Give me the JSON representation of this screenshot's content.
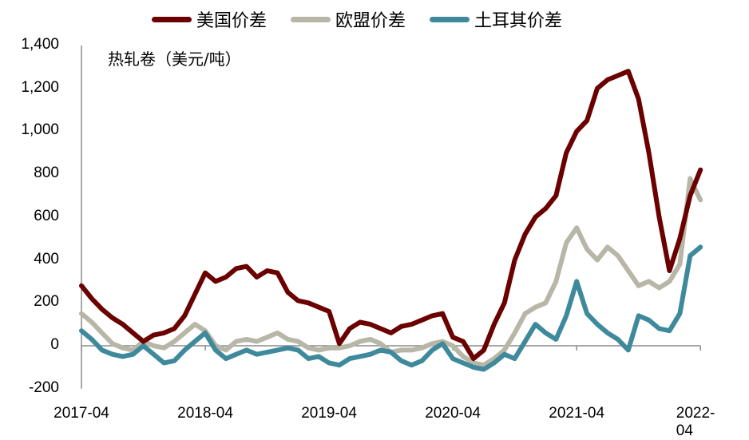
{
  "legend": [
    {
      "label": "美国价差",
      "color": "#6b0000"
    },
    {
      "label": "欧盟价差",
      "color": "#b8b6a6"
    },
    {
      "label": "土耳其价差",
      "color": "#3e8a9c"
    }
  ],
  "unit_label": "热轧卷（美元/吨）",
  "chart_data": {
    "type": "line",
    "title": "",
    "ylabel": "热轧卷（美元/吨）",
    "xlabel": "",
    "ylim": [
      -200,
      1400
    ],
    "yticks": [
      "1,400",
      "1,200",
      "1,000",
      "800",
      "600",
      "400",
      "200",
      "0",
      "-200"
    ],
    "ytick_values": [
      1400,
      1200,
      1000,
      800,
      600,
      400,
      200,
      0,
      -200
    ],
    "xticks": [
      "2017-04",
      "2018-04",
      "2019-04",
      "2020-04",
      "2021-04",
      "2022-04"
    ],
    "x_months": [
      0,
      1,
      2,
      3,
      4,
      5,
      6,
      7,
      8,
      9,
      10,
      11,
      12,
      13,
      14,
      15,
      16,
      17,
      18,
      19,
      20,
      21,
      22,
      23,
      24,
      25,
      26,
      27,
      28,
      29,
      30,
      31,
      32,
      33,
      34,
      35,
      36,
      37,
      38,
      39,
      40,
      41,
      42,
      43,
      44,
      45,
      46,
      47,
      48,
      49,
      50,
      51,
      52,
      53,
      54,
      55,
      56,
      57,
      58,
      59,
      60
    ],
    "series": [
      {
        "name": "美国价差",
        "color": "#6b0000",
        "values": [
          280,
          220,
          170,
          130,
          100,
          60,
          20,
          50,
          60,
          80,
          140,
          240,
          340,
          300,
          320,
          360,
          370,
          320,
          350,
          340,
          250,
          210,
          200,
          180,
          160,
          10,
          80,
          110,
          100,
          80,
          60,
          90,
          100,
          120,
          140,
          150,
          40,
          20,
          -60,
          -20,
          100,
          200,
          400,
          520,
          600,
          640,
          700,
          900,
          1000,
          1050,
          1200,
          1240,
          1260,
          1280,
          1150,
          900,
          600,
          350,
          500,
          700,
          820
        ]
      },
      {
        "name": "欧盟价差",
        "color": "#b8b6a6",
        "values": [
          150,
          110,
          60,
          10,
          -10,
          -20,
          20,
          0,
          -10,
          20,
          60,
          100,
          70,
          0,
          -20,
          20,
          30,
          20,
          40,
          60,
          30,
          20,
          -10,
          -20,
          -10,
          -10,
          0,
          20,
          30,
          10,
          -30,
          -20,
          -20,
          -10,
          10,
          20,
          0,
          -50,
          -80,
          -90,
          -60,
          -20,
          60,
          150,
          180,
          200,
          300,
          480,
          550,
          450,
          400,
          460,
          420,
          350,
          280,
          300,
          270,
          300,
          380,
          780,
          680
        ]
      },
      {
        "name": "土耳其价差",
        "color": "#3e8a9c",
        "values": [
          70,
          30,
          -20,
          -40,
          -50,
          -40,
          0,
          -40,
          -80,
          -70,
          -20,
          20,
          60,
          -20,
          -60,
          -40,
          -20,
          -40,
          -30,
          -20,
          -10,
          -20,
          -60,
          -50,
          -80,
          -90,
          -60,
          -50,
          -40,
          -20,
          -30,
          -70,
          -90,
          -70,
          -20,
          10,
          -60,
          -80,
          -100,
          -110,
          -80,
          -40,
          -60,
          20,
          100,
          60,
          30,
          140,
          300,
          150,
          100,
          60,
          30,
          -20,
          140,
          120,
          80,
          70,
          150,
          420,
          460
        ]
      }
    ]
  }
}
